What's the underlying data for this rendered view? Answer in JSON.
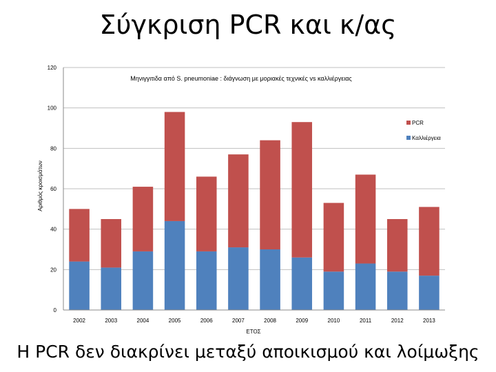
{
  "slide": {
    "title": "Σύγκριση PCR και κ/ας",
    "footer": "Η PCR δεν διακρίνει μεταξύ αποικισμού και λοίμωξης"
  },
  "chart_data": {
    "type": "bar",
    "stacked": true,
    "title": "Μηνιγγιτιδα από S. pneumoniae : διάγνωση με μοριακές τεχνικές vs καλλιέργειας",
    "xlabel": "ΕΤΟΣ",
    "ylabel": "Αριθμός κροισμάτων",
    "categories": [
      "2002",
      "2003",
      "2004",
      "2005",
      "2006",
      "2007",
      "2008",
      "2009",
      "2010",
      "2011",
      "2012",
      "2013"
    ],
    "series": [
      {
        "name": "Καλλιέργεια",
        "color": "#4F81BD",
        "values": [
          24,
          21,
          29,
          44,
          29,
          31,
          30,
          26,
          19,
          23,
          19,
          17
        ]
      },
      {
        "name": "PCR",
        "color": "#C0504D",
        "values": [
          26,
          24,
          32,
          54,
          37,
          46,
          54,
          67,
          34,
          44,
          26,
          34
        ]
      }
    ],
    "ylim": [
      0,
      120
    ],
    "yticks": [
      0,
      20,
      40,
      60,
      80,
      100,
      120
    ],
    "grid": true,
    "legend_position": "right"
  }
}
